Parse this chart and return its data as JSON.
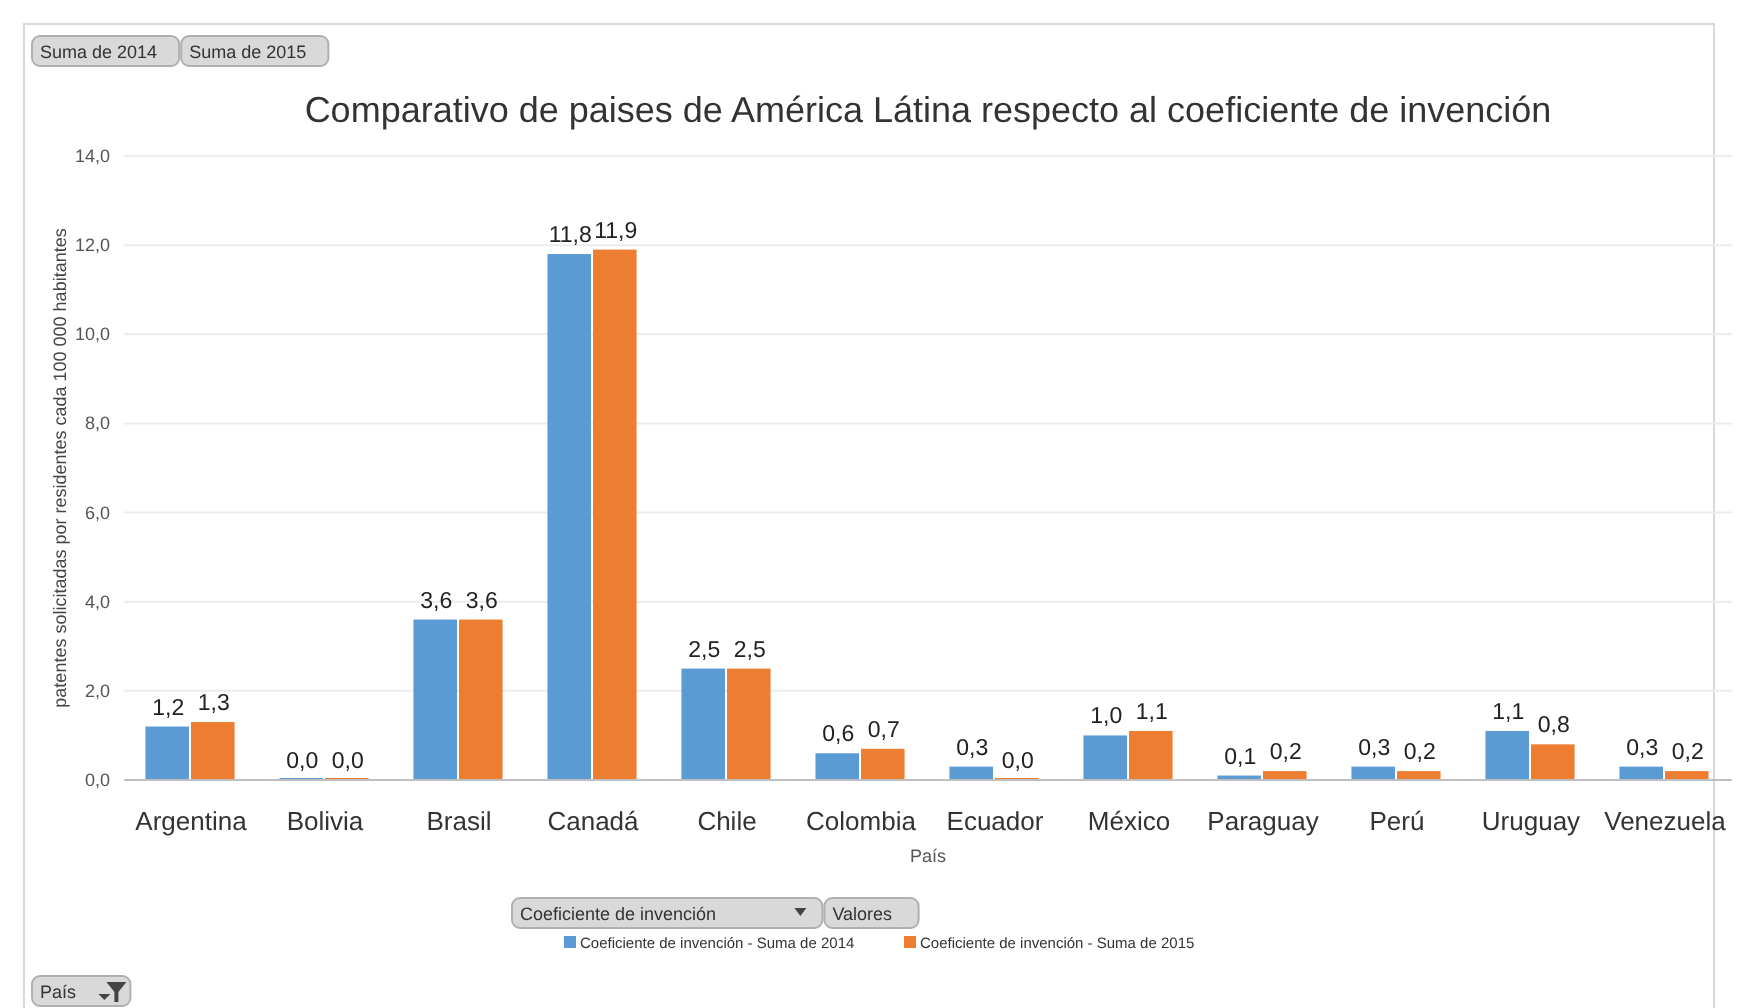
{
  "chart_data": {
    "type": "bar",
    "title": "Comparativo de paises de América Látina respecto al coeficiente de invención",
    "xlabel": "País",
    "ylabel": "patentes solicitadas por residentes cada 100 000 habitantes",
    "categories": [
      "Argentina",
      "Bolivia",
      "Brasil",
      "Canadá",
      "Chile",
      "Colombia",
      "Ecuador",
      "México",
      "Paraguay",
      "Perú",
      "Uruguay",
      "Venezuela"
    ],
    "series": [
      {
        "name": "Coeficiente de invención - Suma de 2014",
        "color": "#5b9bd5",
        "values": [
          1.2,
          0.0,
          3.6,
          11.8,
          2.5,
          0.6,
          0.3,
          1.0,
          0.1,
          0.3,
          1.1,
          0.3
        ],
        "value_labels": [
          "1,2",
          "0,0",
          "3,6",
          "11,8",
          "2,5",
          "0,6",
          "0,3",
          "1,0",
          "0,1",
          "0,3",
          "1,1",
          "0,3"
        ]
      },
      {
        "name": "Coeficiente de invención - Suma de 2015",
        "color": "#ed7d31",
        "values": [
          1.3,
          0.0,
          3.6,
          11.9,
          2.5,
          0.7,
          0.0,
          1.1,
          0.2,
          0.2,
          0.8,
          0.2
        ],
        "value_labels": [
          "1,3",
          "0,0",
          "3,6",
          "11,9",
          "2,5",
          "0,7",
          "0,0",
          "1,1",
          "0,2",
          "0,2",
          "0,8",
          "0,2"
        ]
      }
    ],
    "ylim": [
      0,
      14
    ],
    "yticks": [
      {
        "value": 0,
        "label": "0,0"
      },
      {
        "value": 2,
        "label": "2,0"
      },
      {
        "value": 4,
        "label": "4,0"
      },
      {
        "value": 6,
        "label": "6,0"
      },
      {
        "value": 8,
        "label": "8,0"
      },
      {
        "value": 10,
        "label": "10,0"
      },
      {
        "value": 12,
        "label": "12,0"
      },
      {
        "value": 14,
        "label": "14,0"
      }
    ],
    "grid": "y",
    "legend": "bottom",
    "annotations": [
      "Suma de 2014",
      "Suma de 2015",
      "Coeficiente de invención",
      "Valores",
      "País"
    ]
  }
}
